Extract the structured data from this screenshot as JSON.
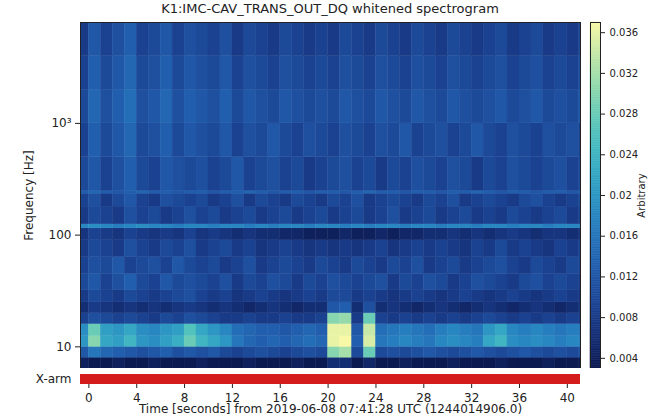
{
  "chart_data": {
    "type": "heatmap",
    "title": "K1:IMC-CAV_TRANS_OUT_DQ whitened spectrogram",
    "x_label": "Time [seconds] from 2019-06-08 07:41:28 UTC (1244014906.0)",
    "y_label": "Frequency [Hz]",
    "log": "y",
    "xlim": [
      -0.7,
      41.1
    ],
    "ylim": [
      6.4,
      8000
    ],
    "xticks": [
      0,
      4,
      8,
      12,
      16,
      20,
      24,
      28,
      32,
      36,
      40
    ],
    "yticks": [
      10,
      100,
      {
        "value": 1000,
        "label": "10³"
      }
    ],
    "x_bins": [
      -1,
      0,
      1,
      2,
      3,
      4,
      5,
      6,
      7,
      8,
      9,
      10,
      11,
      12,
      13,
      14,
      15,
      16,
      17,
      18,
      19,
      20,
      21,
      22,
      23,
      24,
      25,
      26,
      27,
      28,
      29,
      30,
      31,
      32,
      33,
      34,
      35,
      36,
      37,
      38,
      39,
      40,
      41,
      42
    ],
    "y_bins": [
      6.4,
      8,
      10,
      12.5,
      16,
      20,
      25,
      32,
      45,
      64,
      90,
      115,
      125,
      180,
      235,
      250,
      500,
      1000,
      2000,
      4000,
      8000
    ],
    "cells": [
      [
        0.004,
        0.003,
        0.003,
        0.004,
        0.003,
        0.003,
        0.004,
        0.003,
        0.003,
        0.003,
        0.004,
        0.003,
        0.003,
        0.003,
        0.004,
        0.003,
        0.003,
        0.003,
        0.004,
        0.003,
        0.003,
        0.006,
        0.006,
        0.003,
        0.005,
        0.003,
        0.003,
        0.004,
        0.003,
        0.003,
        0.003,
        0.004,
        0.003,
        0.003,
        0.003,
        0.004,
        0.003,
        0.003,
        0.003,
        0.004,
        0.003,
        0.003,
        0.003
      ],
      [
        0.012,
        0.016,
        0.014,
        0.013,
        0.012,
        0.011,
        0.012,
        0.013,
        0.011,
        0.012,
        0.011,
        0.012,
        0.01,
        0.009,
        0.01,
        0.011,
        0.01,
        0.009,
        0.01,
        0.011,
        0.01,
        0.03,
        0.032,
        0.01,
        0.028,
        0.01,
        0.011,
        0.01,
        0.011,
        0.012,
        0.011,
        0.01,
        0.011,
        0.012,
        0.011,
        0.01,
        0.011,
        0.012,
        0.011,
        0.01,
        0.011,
        0.01,
        0.011
      ],
      [
        0.02,
        0.03,
        0.022,
        0.021,
        0.024,
        0.02,
        0.019,
        0.021,
        0.023,
        0.028,
        0.024,
        0.022,
        0.02,
        0.016,
        0.014,
        0.013,
        0.014,
        0.013,
        0.014,
        0.015,
        0.014,
        0.036,
        0.037,
        0.013,
        0.035,
        0.016,
        0.017,
        0.018,
        0.017,
        0.016,
        0.018,
        0.019,
        0.018,
        0.017,
        0.022,
        0.024,
        0.019,
        0.018,
        0.019,
        0.018,
        0.017,
        0.018,
        0.017
      ],
      [
        0.019,
        0.028,
        0.021,
        0.02,
        0.022,
        0.019,
        0.018,
        0.02,
        0.021,
        0.026,
        0.022,
        0.02,
        0.018,
        0.015,
        0.014,
        0.013,
        0.013,
        0.012,
        0.013,
        0.014,
        0.013,
        0.036,
        0.036,
        0.012,
        0.034,
        0.015,
        0.016,
        0.017,
        0.016,
        0.015,
        0.017,
        0.018,
        0.017,
        0.016,
        0.02,
        0.022,
        0.018,
        0.017,
        0.018,
        0.017,
        0.016,
        0.017,
        0.016
      ],
      [
        0.009,
        0.011,
        0.01,
        0.009,
        0.01,
        0.009,
        0.008,
        0.01,
        0.009,
        0.011,
        0.01,
        0.009,
        0.008,
        0.008,
        0.009,
        0.008,
        0.008,
        0.009,
        0.008,
        0.008,
        0.009,
        0.03,
        0.031,
        0.008,
        0.028,
        0.009,
        0.008,
        0.009,
        0.008,
        0.009,
        0.008,
        0.009,
        0.008,
        0.009,
        0.01,
        0.009,
        0.008,
        0.009,
        0.008,
        0.009,
        0.008,
        0.009,
        0.008
      ],
      [
        0.006,
        0.008,
        0.007,
        0.006,
        0.007,
        0.006,
        0.007,
        0.006,
        0.007,
        0.008,
        0.007,
        0.006,
        0.007,
        0.006,
        0.005,
        0.006,
        0.007,
        0.006,
        0.005,
        0.006,
        0.006,
        0.012,
        0.013,
        0.006,
        0.011,
        0.006,
        0.007,
        0.006,
        0.005,
        0.006,
        0.007,
        0.006,
        0.005,
        0.006,
        0.007,
        0.006,
        0.005,
        0.006,
        0.007,
        0.006,
        0.005,
        0.006,
        0.007
      ],
      [
        0.008,
        0.01,
        0.009,
        0.008,
        0.01,
        0.009,
        0.008,
        0.009,
        0.01,
        0.011,
        0.009,
        0.008,
        0.009,
        0.007,
        0.008,
        0.009,
        0.008,
        0.007,
        0.008,
        0.009,
        0.008,
        0.01,
        0.01,
        0.008,
        0.009,
        0.008,
        0.007,
        0.008,
        0.009,
        0.008,
        0.007,
        0.008,
        0.009,
        0.008,
        0.007,
        0.008,
        0.009,
        0.008,
        0.007,
        0.008,
        0.009,
        0.008,
        0.007
      ],
      [
        0.01,
        0.012,
        0.009,
        0.011,
        0.013,
        0.01,
        0.009,
        0.012,
        0.01,
        0.011,
        0.01,
        0.009,
        0.011,
        0.008,
        0.01,
        0.009,
        0.011,
        0.01,
        0.008,
        0.01,
        0.009,
        0.011,
        0.01,
        0.009,
        0.01,
        0.011,
        0.008,
        0.01,
        0.009,
        0.011,
        0.01,
        0.008,
        0.009,
        0.011,
        0.01,
        0.009,
        0.008,
        0.01,
        0.011,
        0.009,
        0.01,
        0.009,
        0.008
      ],
      [
        0.009,
        0.011,
        0.01,
        0.012,
        0.009,
        0.01,
        0.011,
        0.009,
        0.012,
        0.01,
        0.009,
        0.01,
        0.008,
        0.009,
        0.011,
        0.008,
        0.009,
        0.01,
        0.009,
        0.008,
        0.01,
        0.009,
        0.008,
        0.01,
        0.009,
        0.008,
        0.01,
        0.009,
        0.011,
        0.008,
        0.009,
        0.01,
        0.008,
        0.009,
        0.01,
        0.011,
        0.009,
        0.008,
        0.01,
        0.009,
        0.008,
        0.01,
        0.009
      ],
      [
        0.008,
        0.01,
        0.009,
        0.008,
        0.011,
        0.009,
        0.008,
        0.01,
        0.009,
        0.011,
        0.008,
        0.009,
        0.01,
        0.008,
        0.009,
        0.007,
        0.008,
        0.009,
        0.008,
        0.007,
        0.008,
        0.007,
        0.008,
        0.007,
        0.008,
        0.009,
        0.007,
        0.008,
        0.009,
        0.008,
        0.009,
        0.008,
        0.007,
        0.009,
        0.008,
        0.01,
        0.008,
        0.009,
        0.008,
        0.007,
        0.009,
        0.008,
        0.009
      ],
      [
        0.007,
        0.009,
        0.008,
        0.007,
        0.009,
        0.008,
        0.007,
        0.008,
        0.007,
        0.009,
        0.007,
        0.008,
        0.007,
        0.006,
        0.007,
        0.006,
        0.006,
        0.005,
        0.005,
        0.004,
        0.004,
        0.004,
        0.005,
        0.004,
        0.004,
        0.005,
        0.004,
        0.005,
        0.005,
        0.006,
        0.006,
        0.007,
        0.006,
        0.007,
        0.006,
        0.007,
        0.008,
        0.007,
        0.006,
        0.007,
        0.007,
        0.006,
        0.007
      ],
      [
        0.018,
        0.019,
        0.018,
        0.017,
        0.018,
        0.019,
        0.018,
        0.018,
        0.017,
        0.018,
        0.018,
        0.017,
        0.018,
        0.018,
        0.017,
        0.018,
        0.017,
        0.018,
        0.018,
        0.017,
        0.018,
        0.018,
        0.017,
        0.018,
        0.017,
        0.018,
        0.018,
        0.017,
        0.018,
        0.018,
        0.017,
        0.018,
        0.018,
        0.017,
        0.018,
        0.018,
        0.017,
        0.018,
        0.018,
        0.017,
        0.018,
        0.018,
        0.017
      ],
      [
        0.008,
        0.01,
        0.009,
        0.008,
        0.011,
        0.009,
        0.01,
        0.008,
        0.009,
        0.011,
        0.009,
        0.01,
        0.008,
        0.009,
        0.01,
        0.008,
        0.009,
        0.01,
        0.008,
        0.009,
        0.01,
        0.008,
        0.009,
        0.01,
        0.008,
        0.009,
        0.011,
        0.008,
        0.009,
        0.01,
        0.008,
        0.009,
        0.01,
        0.008,
        0.009,
        0.008,
        0.01,
        0.009,
        0.008,
        0.009,
        0.01,
        0.008,
        0.009
      ],
      [
        0.009,
        0.011,
        0.008,
        0.01,
        0.012,
        0.009,
        0.008,
        0.011,
        0.01,
        0.009,
        0.01,
        0.008,
        0.009,
        0.011,
        0.008,
        0.01,
        0.009,
        0.008,
        0.01,
        0.009,
        0.008,
        0.01,
        0.009,
        0.011,
        0.008,
        0.009,
        0.01,
        0.009,
        0.008,
        0.01,
        0.009,
        0.011,
        0.008,
        0.009,
        0.01,
        0.009,
        0.008,
        0.01,
        0.011,
        0.009,
        0.008,
        0.009,
        0.01
      ],
      [
        0.013,
        0.014,
        0.013,
        0.012,
        0.013,
        0.014,
        0.013,
        0.013,
        0.012,
        0.013,
        0.013,
        0.012,
        0.013,
        0.013,
        0.014,
        0.013,
        0.012,
        0.013,
        0.013,
        0.012,
        0.013,
        0.013,
        0.012,
        0.013,
        0.014,
        0.013,
        0.013,
        0.012,
        0.013,
        0.013,
        0.012,
        0.013,
        0.013,
        0.014,
        0.013,
        0.012,
        0.013,
        0.013,
        0.012,
        0.013,
        0.013,
        0.012,
        0.013
      ],
      [
        0.01,
        0.012,
        0.009,
        0.011,
        0.013,
        0.01,
        0.009,
        0.012,
        0.011,
        0.01,
        0.011,
        0.009,
        0.01,
        0.012,
        0.009,
        0.01,
        0.011,
        0.009,
        0.01,
        0.008,
        0.009,
        0.01,
        0.011,
        0.009,
        0.01,
        0.008,
        0.01,
        0.009,
        0.011,
        0.01,
        0.009,
        0.011,
        0.01,
        0.008,
        0.01,
        0.009,
        0.011,
        0.01,
        0.009,
        0.01,
        0.011,
        0.009,
        0.01
      ],
      [
        0.009,
        0.013,
        0.01,
        0.012,
        0.014,
        0.01,
        0.011,
        0.013,
        0.01,
        0.012,
        0.011,
        0.01,
        0.012,
        0.009,
        0.011,
        0.01,
        0.012,
        0.01,
        0.009,
        0.011,
        0.01,
        0.009,
        0.011,
        0.01,
        0.009,
        0.011,
        0.01,
        0.012,
        0.009,
        0.01,
        0.011,
        0.009,
        0.01,
        0.012,
        0.01,
        0.009,
        0.011,
        0.01,
        0.009,
        0.011,
        0.01,
        0.011,
        0.009
      ],
      [
        0.01,
        0.014,
        0.011,
        0.013,
        0.015,
        0.011,
        0.012,
        0.014,
        0.011,
        0.013,
        0.012,
        0.011,
        0.013,
        0.01,
        0.012,
        0.011,
        0.01,
        0.012,
        0.011,
        0.01,
        0.011,
        0.01,
        0.012,
        0.011,
        0.01,
        0.012,
        0.011,
        0.01,
        0.012,
        0.011,
        0.01,
        0.012,
        0.011,
        0.01,
        0.011,
        0.012,
        0.01,
        0.011,
        0.012,
        0.01,
        0.011,
        0.01,
        0.012
      ],
      [
        0.009,
        0.013,
        0.01,
        0.012,
        0.014,
        0.01,
        0.011,
        0.013,
        0.01,
        0.012,
        0.011,
        0.01,
        0.012,
        0.009,
        0.011,
        0.01,
        0.009,
        0.011,
        0.01,
        0.009,
        0.01,
        0.009,
        0.011,
        0.01,
        0.009,
        0.011,
        0.01,
        0.009,
        0.011,
        0.01,
        0.009,
        0.011,
        0.01,
        0.009,
        0.01,
        0.011,
        0.009,
        0.01,
        0.011,
        0.009,
        0.01,
        0.009,
        0.011
      ],
      [
        0.008,
        0.012,
        0.009,
        0.011,
        0.013,
        0.009,
        0.01,
        0.012,
        0.009,
        0.011,
        0.01,
        0.009,
        0.011,
        0.008,
        0.01,
        0.009,
        0.008,
        0.01,
        0.009,
        0.008,
        0.009,
        0.008,
        0.01,
        0.009,
        0.008,
        0.01,
        0.009,
        0.008,
        0.01,
        0.009,
        0.008,
        0.01,
        0.009,
        0.008,
        0.009,
        0.01,
        0.008,
        0.009,
        0.01,
        0.008,
        0.009,
        0.008,
        0.01
      ]
    ],
    "colorbar": {
      "label": "Arbitrary",
      "range": [
        0.003,
        0.037
      ],
      "ticks": [
        0.004,
        0.008,
        0.012,
        0.016,
        0.02,
        0.024,
        0.028,
        0.032,
        0.036
      ]
    },
    "segments": [
      {
        "name": "X-arm",
        "start": -0.7,
        "end": 41.1,
        "color": "#d41c1c"
      }
    ]
  }
}
